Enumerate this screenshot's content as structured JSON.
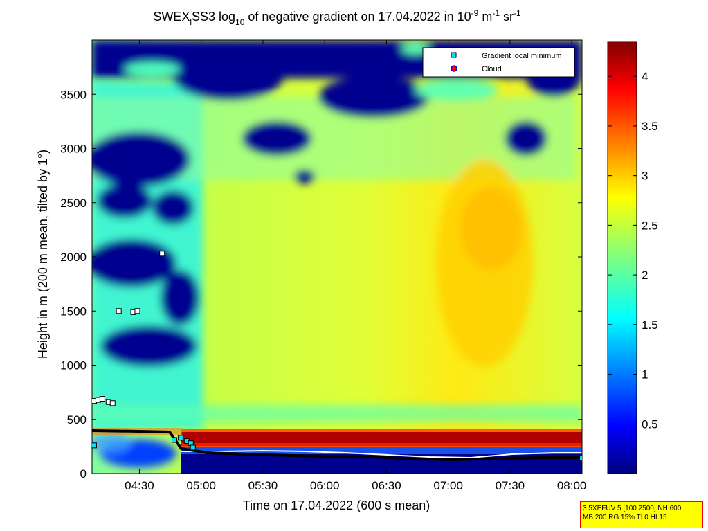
{
  "chart_data": {
    "type": "heatmap",
    "title": {
      "prefix": "SWEX",
      "subscript1": "l",
      "mid1": "SS3 log",
      "subscript2": "10",
      "mid2": " of negative gradient on 17.04.2022 in 10",
      "sup1": "-9",
      "mid3": " m",
      "sup2": "-1",
      "mid4": " sr",
      "sup3": "-1"
    },
    "xlabel": "Time on 17.04.2022 (600 s mean)",
    "ylabel": "Height in m (200 m mean, tilted by 1°)",
    "x_range": [
      "04:07",
      "08:05"
    ],
    "x_ticks": [
      "04:30",
      "05:00",
      "05:30",
      "06:00",
      "06:30",
      "07:00",
      "07:30",
      "08:00"
    ],
    "ylim": [
      0,
      4000
    ],
    "y_ticks": [
      0,
      500,
      1000,
      1500,
      2000,
      2500,
      3000,
      3500
    ],
    "colorbar": {
      "range": [
        0,
        4.35
      ],
      "ticks": [
        "0.5",
        "1",
        "1.5",
        "2",
        "2.5",
        "3",
        "3.5",
        "4"
      ],
      "colormap": "jet"
    },
    "legend": {
      "placement": "top-right",
      "entries": [
        {
          "label": "Gradient local minimum",
          "marker": "square",
          "color": "#00e5ee"
        },
        {
          "label": "Cloud",
          "marker": "circle",
          "color": "#ff0000"
        }
      ]
    },
    "series": [
      {
        "name": "Gradient local minimum",
        "points": [
          {
            "x": "04:08",
            "y": 260
          },
          {
            "x": "04:08",
            "y": 670
          },
          {
            "x": "04:10",
            "y": 680
          },
          {
            "x": "04:12",
            "y": 690
          },
          {
            "x": "04:15",
            "y": 660
          },
          {
            "x": "04:17",
            "y": 650
          },
          {
            "x": "04:20",
            "y": 1500
          },
          {
            "x": "04:27",
            "y": 1490
          },
          {
            "x": "04:29",
            "y": 1500
          },
          {
            "x": "04:41",
            "y": 2030
          },
          {
            "x": "04:47",
            "y": 310
          },
          {
            "x": "04:50",
            "y": 330
          },
          {
            "x": "04:53",
            "y": 300
          },
          {
            "x": "04:55",
            "y": 280
          },
          {
            "x": "04:56",
            "y": 240
          },
          {
            "x": "08:05",
            "y": 140
          }
        ]
      }
    ]
  },
  "info_box": {
    "line1": "3.5XEFUV 5 [100 2500] NH 600",
    "line2": "MB 200 RG 15% TI 0 HI 15"
  }
}
